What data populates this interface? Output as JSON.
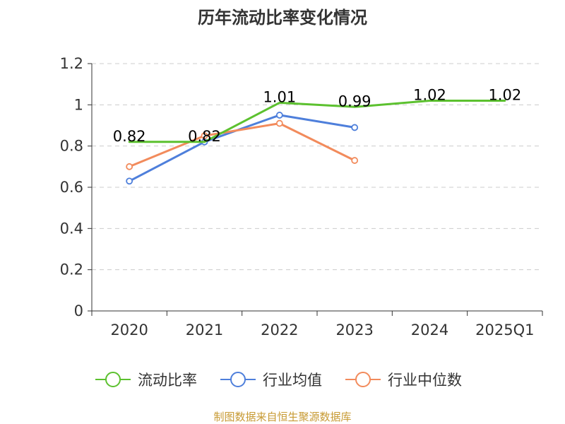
{
  "chart_data": {
    "type": "line",
    "title": "历年流动比率变化情况",
    "categories": [
      "2020",
      "2021",
      "2022",
      "2023",
      "2024",
      "2025Q1"
    ],
    "ylim": [
      0,
      1.2
    ],
    "y_ticks": [
      "0",
      "0.2",
      "0.4",
      "0.6",
      "0.8",
      "1",
      "1.2"
    ],
    "grid": true,
    "legend_position": "bottom",
    "series": [
      {
        "name": "流动比率",
        "color": "#5cc12f",
        "values": [
          0.82,
          0.82,
          1.01,
          0.99,
          1.02,
          1.02
        ],
        "labels": [
          "0.82",
          "0.82",
          "1.01",
          "0.99",
          "1.02",
          "1.02"
        ],
        "show_markers": false,
        "show_labels": true
      },
      {
        "name": "行业均值",
        "color": "#4e7fdb",
        "values": [
          0.63,
          0.82,
          0.95,
          0.89,
          null,
          null
        ],
        "show_markers": true,
        "show_labels": false
      },
      {
        "name": "行业中位数",
        "color": "#f28b5c",
        "values": [
          0.7,
          0.85,
          0.91,
          0.73,
          null,
          null
        ],
        "show_markers": true,
        "show_labels": false
      }
    ],
    "source": "制图数据来自恒生聚源数据库"
  }
}
